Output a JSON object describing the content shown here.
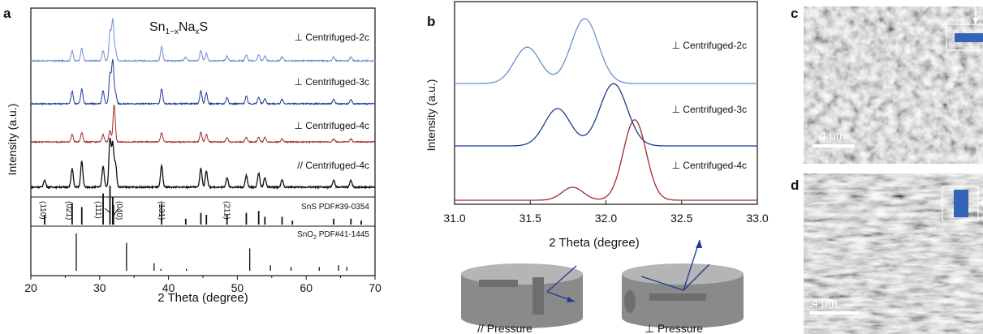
{
  "panels": {
    "a": {
      "letter": "a"
    },
    "b": {
      "letter": "b"
    },
    "c": {
      "letter": "c",
      "scale": "4 μm"
    },
    "d": {
      "letter": "d",
      "scale": "4 μm"
    }
  },
  "schematic": {
    "parallel_label": "// Pressure",
    "perp_label": "⊥ Pressure"
  },
  "colors": {
    "c2": "#6b8fd1",
    "c3": "#1f3a93",
    "c4": "#a12a2a",
    "par4": "#111111",
    "sem_inset": "#3563b8"
  },
  "chart_data": [
    {
      "type": "line",
      "panel": "a",
      "title": "Sn1−xNaxS",
      "title_parts": {
        "sn": "Sn",
        "sub1": "1−x",
        "na": "Na",
        "sub2": "x",
        "s": "S"
      },
      "xlabel": "2 Theta (degree)",
      "ylabel": "Intensity (a.u.)",
      "xlim": [
        20,
        70
      ],
      "xticks": [
        20,
        30,
        40,
        50,
        60,
        70
      ],
      "series": [
        {
          "name": "⊥ Centrifuged-2c",
          "color": "#6b8fd1",
          "peaks": [
            [
              26.0,
              0.25
            ],
            [
              27.4,
              0.3
            ],
            [
              30.5,
              0.25
            ],
            [
              31.5,
              0.7
            ],
            [
              31.9,
              1.0
            ],
            [
              32.3,
              0.25
            ],
            [
              39.0,
              0.35
            ],
            [
              42.5,
              0.1
            ],
            [
              44.7,
              0.25
            ],
            [
              45.5,
              0.2
            ],
            [
              48.5,
              0.12
            ],
            [
              51.3,
              0.15
            ],
            [
              53.1,
              0.15
            ],
            [
              54.0,
              0.12
            ],
            [
              56.5,
              0.1
            ],
            [
              64.0,
              0.1
            ],
            [
              66.5,
              0.1
            ]
          ]
        },
        {
          "name": "⊥ Centrifuged-3c",
          "color": "#1f3a93",
          "peaks": [
            [
              26.0,
              0.3
            ],
            [
              27.4,
              0.35
            ],
            [
              30.5,
              0.3
            ],
            [
              31.5,
              0.7
            ],
            [
              31.9,
              1.0
            ],
            [
              32.3,
              0.25
            ],
            [
              39.0,
              0.35
            ],
            [
              44.7,
              0.3
            ],
            [
              45.5,
              0.25
            ],
            [
              48.5,
              0.15
            ],
            [
              51.3,
              0.18
            ],
            [
              53.1,
              0.15
            ],
            [
              54.0,
              0.12
            ],
            [
              56.5,
              0.1
            ],
            [
              64.0,
              0.1
            ],
            [
              66.5,
              0.1
            ]
          ]
        },
        {
          "name": "⊥ Centrifuged-4c",
          "color": "#a12a2a",
          "peaks": [
            [
              26.0,
              0.2
            ],
            [
              27.4,
              0.25
            ],
            [
              30.5,
              0.2
            ],
            [
              31.5,
              0.3
            ],
            [
              32.1,
              1.0
            ],
            [
              39.0,
              0.25
            ],
            [
              44.7,
              0.25
            ],
            [
              45.5,
              0.2
            ],
            [
              48.5,
              0.12
            ],
            [
              51.3,
              0.12
            ],
            [
              53.1,
              0.12
            ],
            [
              54.0,
              0.12
            ],
            [
              56.5,
              0.08
            ],
            [
              64.0,
              0.08
            ],
            [
              66.5,
              0.08
            ]
          ]
        },
        {
          "name": "// Centrifuged-4c",
          "color": "#111111",
          "peaks": [
            [
              22.0,
              0.15
            ],
            [
              26.0,
              0.4
            ],
            [
              27.4,
              0.55
            ],
            [
              30.5,
              0.45
            ],
            [
              31.5,
              1.0
            ],
            [
              31.9,
              0.9
            ],
            [
              32.3,
              0.5
            ],
            [
              39.0,
              0.45
            ],
            [
              44.7,
              0.4
            ],
            [
              45.5,
              0.35
            ],
            [
              48.5,
              0.2
            ],
            [
              51.3,
              0.25
            ],
            [
              53.1,
              0.3
            ],
            [
              54.0,
              0.2
            ],
            [
              56.5,
              0.15
            ],
            [
              64.0,
              0.15
            ],
            [
              66.5,
              0.15
            ]
          ]
        }
      ],
      "references": [
        {
          "name": "SnS PDF#39-0354",
          "sticks": [
            [
              22.0,
              0.25
            ],
            [
              26.0,
              0.55
            ],
            [
              27.4,
              0.45
            ],
            [
              30.5,
              0.8
            ],
            [
              31.5,
              1.0
            ],
            [
              31.9,
              0.7
            ],
            [
              32.0,
              0.5
            ],
            [
              39.0,
              0.55
            ],
            [
              42.5,
              0.15
            ],
            [
              44.7,
              0.3
            ],
            [
              45.5,
              0.25
            ],
            [
              48.5,
              0.25
            ],
            [
              51.3,
              0.3
            ],
            [
              53.1,
              0.35
            ],
            [
              54.0,
              0.2
            ],
            [
              56.5,
              0.2
            ],
            [
              58.0,
              0.1
            ],
            [
              64.0,
              0.15
            ],
            [
              66.5,
              0.15
            ],
            [
              68.0,
              0.1
            ]
          ],
          "hkl": [
            {
              "label": "(110)",
              "x": 22.0
            },
            {
              "label": "(021)",
              "x": 26.0
            },
            {
              "label": "(111)",
              "x": 30.5
            },
            {
              "label": "(040)",
              "x": 31.9
            },
            {
              "label": "(131)",
              "x": 39.0
            },
            {
              "label": "(211)",
              "x": 48.5
            }
          ]
        },
        {
          "name": "SnO2 PDF#41-1445",
          "name_parts": {
            "pre": "SnO",
            "sub": "2",
            "post": " PDF#41-1445"
          },
          "sticks": [
            [
              26.6,
              1.0
            ],
            [
              33.9,
              0.75
            ],
            [
              37.9,
              0.2
            ],
            [
              38.9,
              0.05
            ],
            [
              42.6,
              0.05
            ],
            [
              51.8,
              0.6
            ],
            [
              54.8,
              0.15
            ],
            [
              57.8,
              0.1
            ],
            [
              61.9,
              0.1
            ],
            [
              64.7,
              0.15
            ],
            [
              65.9,
              0.1
            ]
          ]
        }
      ]
    },
    {
      "type": "line",
      "panel": "b",
      "xlabel": "2 Theta (degree)",
      "ylabel": "Intensity (a.u.)",
      "xlim": [
        31.0,
        33.0
      ],
      "xticks": [
        31.0,
        31.5,
        32.0,
        32.5,
        33.0
      ],
      "series": [
        {
          "name": "⊥ Centrifuged-2c",
          "color": "#6b8fd1",
          "peaks": [
            [
              31.48,
              0.7,
              0.085
            ],
            [
              31.86,
              1.25,
              0.09
            ]
          ]
        },
        {
          "name": "⊥ Centrifuged-3c",
          "color": "#1f3a93",
          "peaks": [
            [
              31.68,
              0.72,
              0.085
            ],
            [
              32.05,
              1.2,
              0.09
            ]
          ]
        },
        {
          "name": "⊥ Centrifuged-4c",
          "color": "#a12a2a",
          "peaks": [
            [
              31.78,
              0.25,
              0.07
            ],
            [
              32.19,
              1.55,
              0.075
            ]
          ]
        }
      ]
    }
  ]
}
